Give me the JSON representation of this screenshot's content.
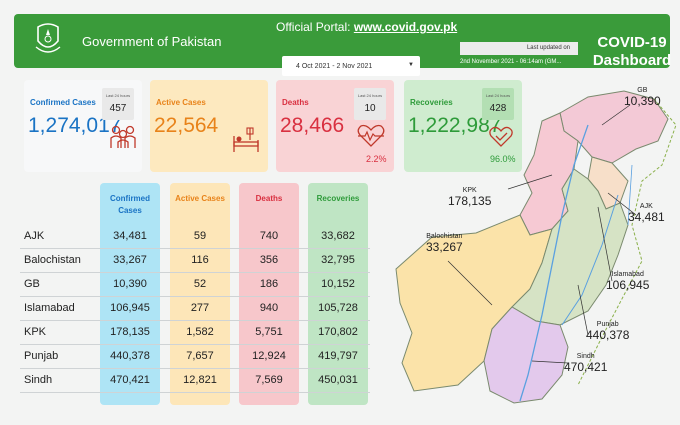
{
  "header": {
    "gov_title": "Government of Pakistan",
    "portal_prefix": "Official Portal:",
    "portal_url": "www.covid.gov.pk",
    "date_range": "4 Oct 2021 - 2 Nov 2021",
    "last_updated_label": "Last updated on",
    "last_updated_time": "2nd November 2021 - 06:14am (GM...",
    "dashboard_line1": "COVID-19",
    "dashboard_line2": "Dashboard",
    "brand_color": "#3a9b3a"
  },
  "cards": {
    "confirmed": {
      "label": "Confirmed Cases",
      "value": "1,274,017",
      "sub_caption": "Last 24 hours",
      "sub_value": "457",
      "color": "#1a73c4"
    },
    "active": {
      "label": "Active Cases",
      "value": "22,564",
      "color": "#e8831a"
    },
    "deaths": {
      "label": "Deaths",
      "value": "28,466",
      "sub_caption": "Last 24 hours",
      "sub_value": "10",
      "percent": "2.2%",
      "color": "#d93040"
    },
    "recoveries": {
      "label": "Recoveries",
      "value": "1,222,987",
      "sub_caption": "Last 24 hours",
      "sub_value": "428",
      "percent": "96.0%",
      "color": "#2e9b3a"
    }
  },
  "table": {
    "headers": {
      "confirmed": "Confirmed Cases",
      "active": "Active Cases",
      "deaths": "Deaths",
      "recoveries": "Recoveries"
    },
    "rows": [
      {
        "region": "AJK",
        "confirmed": "34,481",
        "active": "59",
        "deaths": "740",
        "recoveries": "33,682"
      },
      {
        "region": "Balochistan",
        "confirmed": "33,267",
        "active": "116",
        "deaths": "356",
        "recoveries": "32,795"
      },
      {
        "region": "GB",
        "confirmed": "10,390",
        "active": "52",
        "deaths": "186",
        "recoveries": "10,152"
      },
      {
        "region": "Islamabad",
        "confirmed": "106,945",
        "active": "277",
        "deaths": "940",
        "recoveries": "105,728"
      },
      {
        "region": "KPK",
        "confirmed": "178,135",
        "active": "1,582",
        "deaths": "5,751",
        "recoveries": "170,802"
      },
      {
        "region": "Punjab",
        "confirmed": "440,378",
        "active": "7,657",
        "deaths": "12,924",
        "recoveries": "419,797"
      },
      {
        "region": "Sindh",
        "confirmed": "470,421",
        "active": "12,821",
        "deaths": "7,569",
        "recoveries": "450,031"
      }
    ]
  },
  "map": {
    "labels": {
      "gb": {
        "name": "GB",
        "value": "10,390"
      },
      "kpk": {
        "name": "KPK",
        "value": "178,135"
      },
      "ajk": {
        "name": "AJK",
        "value": "34,481"
      },
      "balochistan": {
        "name": "Balochistan",
        "value": "33,267"
      },
      "islamabad": {
        "name": "Islamabad",
        "value": "106,945"
      },
      "punjab": {
        "name": "Punjab",
        "value": "440,378"
      },
      "sindh": {
        "name": "Sindh",
        "value": "470,421"
      }
    }
  }
}
